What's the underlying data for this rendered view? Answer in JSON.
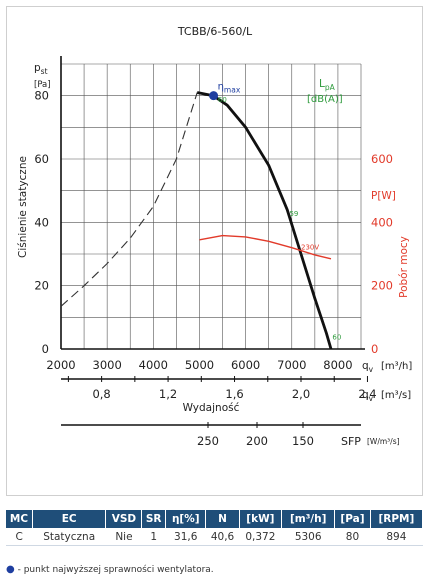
{
  "chart_data": {
    "type": "line",
    "title": "TCBB/6-560/L",
    "y_axis": {
      "label_symbol": "p",
      "label_sub": "st",
      "label_unit": "[Pa]",
      "label_rot": "Ciśnienie statyczne",
      "ticks": [
        "0",
        "20",
        "40",
        "60",
        "80"
      ],
      "ylim": [
        0,
        90
      ]
    },
    "x_axis": {
      "label": "Wydajność",
      "unit1_symbol": "q",
      "unit1_sub": "v",
      "unit1": "[m³/h]",
      "ticks": [
        "2000",
        "3000",
        "4000",
        "5000",
        "6000",
        "7000",
        "8000"
      ],
      "xlim": [
        2000,
        8500
      ]
    },
    "x_axis2": {
      "unit_symbol": "q",
      "unit_sub": "v",
      "unit": "[m³/s]",
      "ticks": [
        "0,8",
        "1,2",
        "1,6",
        "2,0",
        "2,4"
      ]
    },
    "sfp_axis": {
      "label": "SFP",
      "unit": "[W/m³/s]",
      "ticks": [
        "250",
        "200",
        "150"
      ]
    },
    "power_axis": {
      "label": "P[W]",
      "label_rot": "Pobór mocy",
      "ticks": [
        "0",
        "200",
        "400",
        "600"
      ],
      "ylim": [
        0,
        900
      ],
      "color": "#e23a2a"
    },
    "lpa_label": {
      "main": "L",
      "sub": "pA",
      "unit": "[dB(A)]",
      "color": "#2e9a3c"
    },
    "eta_label": {
      "main": "η",
      "sub": "max"
    },
    "series": [
      {
        "name": "",
        "style": "dashed",
        "color": "#333333",
        "points": [
          [
            2000,
            13.5
          ],
          [
            2500,
            20
          ],
          [
            3000,
            27
          ],
          [
            3500,
            35
          ],
          [
            4000,
            45
          ],
          [
            4500,
            60
          ],
          [
            4950,
            81
          ]
        ]
      },
      {
        "name": "",
        "style": "solid",
        "color": "#111111",
        "points": [
          [
            4950,
            81
          ],
          [
            5300,
            80
          ],
          [
            5600,
            77
          ],
          [
            6000,
            70
          ],
          [
            6500,
            58
          ],
          [
            6900,
            44
          ],
          [
            7200,
            30
          ],
          [
            7500,
            16
          ],
          [
            7750,
            5
          ],
          [
            7850,
            0
          ]
        ]
      },
      {
        "name": "",
        "style": "solid",
        "color": "#e23a2a",
        "axis": "power",
        "points": [
          [
            5000,
            345
          ],
          [
            5500,
            358
          ],
          [
            6000,
            354
          ],
          [
            6500,
            340
          ],
          [
            7000,
            320
          ],
          [
            7500,
            297
          ],
          [
            7850,
            285
          ]
        ]
      }
    ],
    "eta_max_point": {
      "x": 5306,
      "y": 80
    },
    "annotations": [
      {
        "text": "60",
        "x": 5400,
        "y": 78,
        "color": "#2e9a3c"
      },
      {
        "text": "59",
        "x": 6950,
        "y": 42,
        "color": "#2e9a3c"
      },
      {
        "text": "60",
        "x": 7880,
        "y": 3,
        "color": "#2e9a3c"
      },
      {
        "text": "230V",
        "x": 7200,
        "y": 315,
        "color": "#e23a2a",
        "axis": "power"
      }
    ],
    "grid": true
  },
  "table": {
    "headers": [
      "MC",
      "EC",
      "VSD",
      "SR",
      "η[%]",
      "N",
      "[kW]",
      "[m³/h]",
      "[Pa]",
      "[RPM]"
    ],
    "row": [
      "C",
      "Statyczna",
      "Nie",
      "1",
      "31,6",
      "40,6",
      "0,372",
      "5306",
      "80",
      "894"
    ]
  },
  "note": "- punkt najwyższej sprawności wentylatora."
}
